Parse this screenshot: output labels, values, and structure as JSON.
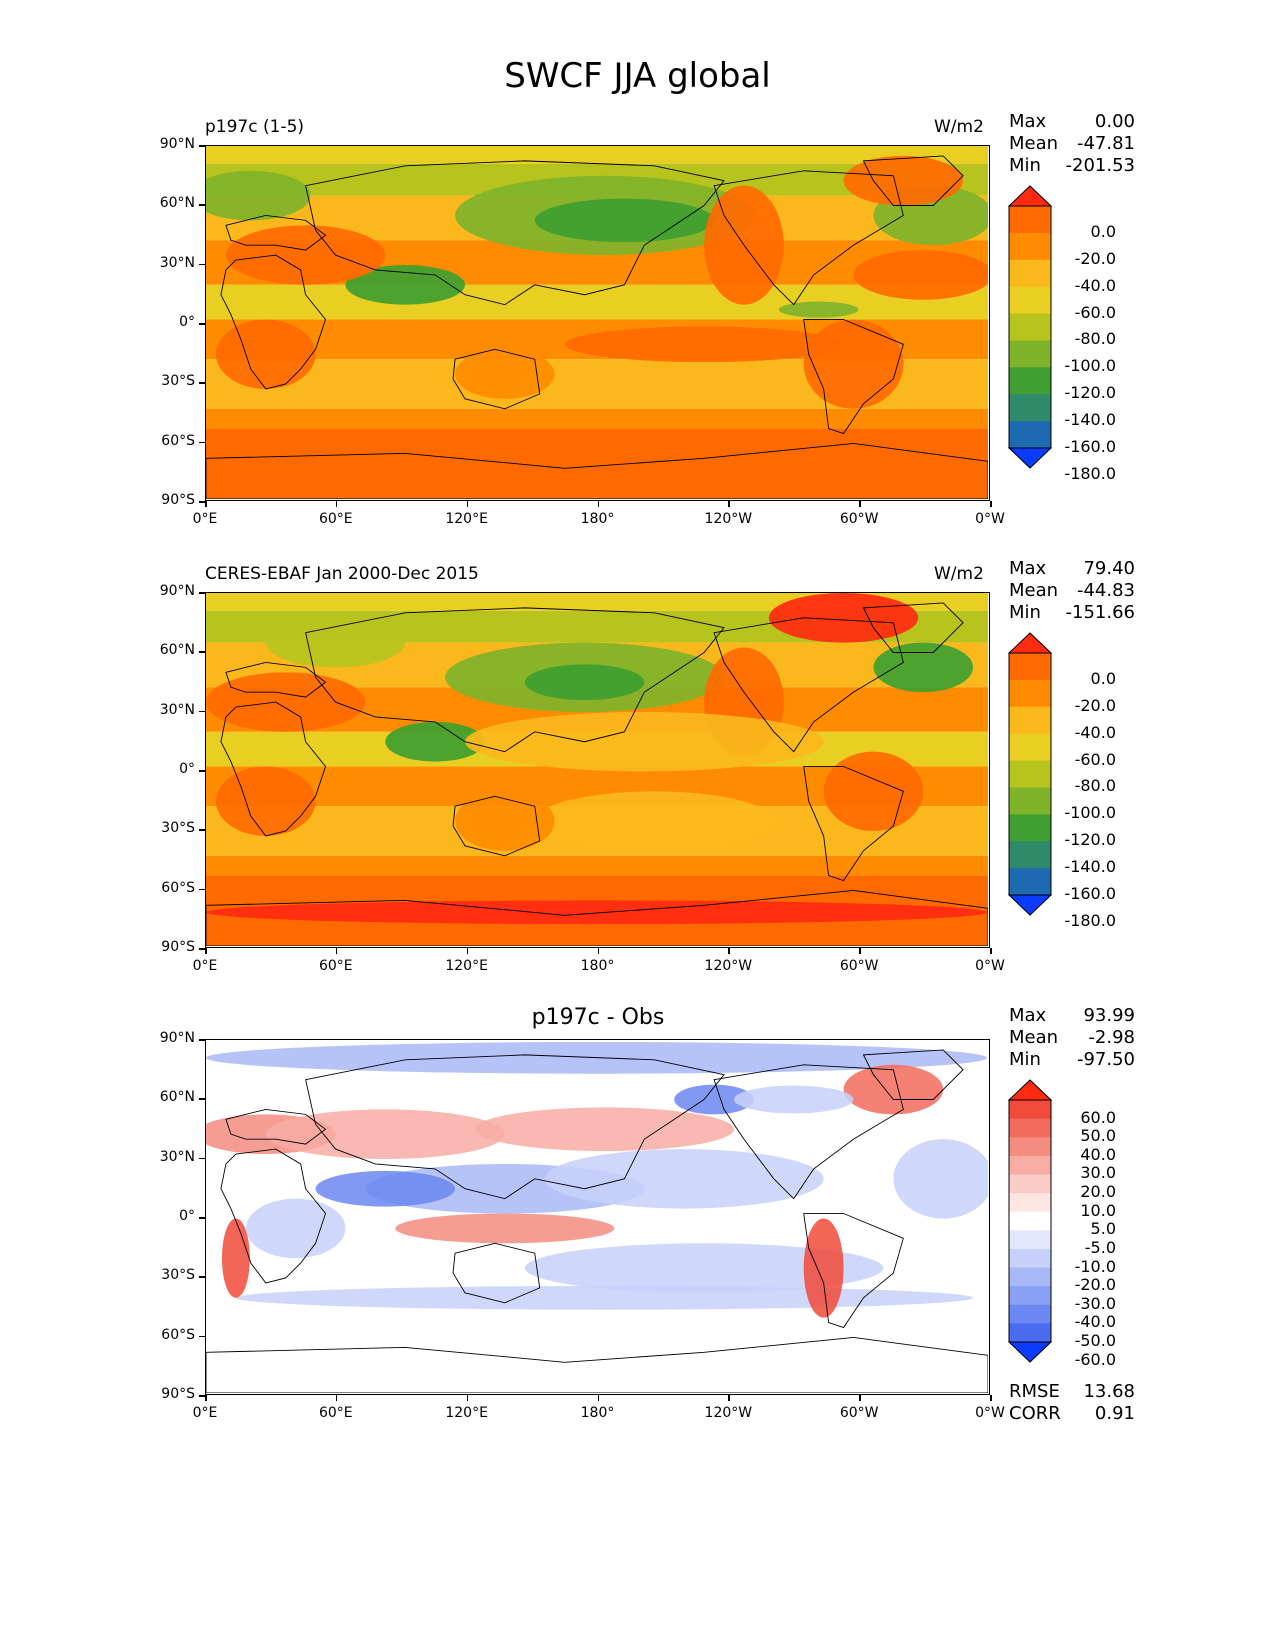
{
  "figure_title": "SWCF JJA global",
  "panels": [
    {
      "left_title": "p197c (1-5)",
      "right_title": "W/m2",
      "center_title": "",
      "stats": [
        {
          "k": "Max",
          "v": "0.00"
        },
        {
          "k": "Mean",
          "v": "-47.81"
        },
        {
          "k": "Min",
          "v": "-201.53"
        }
      ],
      "colorbar_labels": [
        "0.0",
        "-20.0",
        "-40.0",
        "-60.0",
        "-80.0",
        "-100.0",
        "-120.0",
        "-140.0",
        "-160.0",
        "-180.0"
      ],
      "colorbar_colors": [
        "#ff2a10",
        "#ff6a00",
        "#ff8c00",
        "#fbb81c",
        "#e8cf22",
        "#b8c41e",
        "#7fb32a",
        "#3f9f30",
        "#2f8a6a",
        "#1e6ab0",
        "#0a3cff"
      ]
    },
    {
      "left_title": "CERES-EBAF Jan 2000-Dec 2015",
      "right_title": "W/m2",
      "center_title": "",
      "stats": [
        {
          "k": "Max",
          "v": "79.40"
        },
        {
          "k": "Mean",
          "v": "-44.83"
        },
        {
          "k": "Min",
          "v": "-151.66"
        }
      ],
      "colorbar_labels": [
        "0.0",
        "-20.0",
        "-40.0",
        "-60.0",
        "-80.0",
        "-100.0",
        "-120.0",
        "-140.0",
        "-160.0",
        "-180.0"
      ],
      "colorbar_colors": [
        "#ff2a10",
        "#ff6a00",
        "#ff8c00",
        "#fbb81c",
        "#e8cf22",
        "#b8c41e",
        "#7fb32a",
        "#3f9f30",
        "#2f8a6a",
        "#1e6ab0",
        "#0a3cff"
      ]
    },
    {
      "left_title": "",
      "right_title": "",
      "center_title": "p197c - Obs",
      "stats": [
        {
          "k": "Max",
          "v": "93.99"
        },
        {
          "k": "Mean",
          "v": "-2.98"
        },
        {
          "k": "Min",
          "v": "-97.50"
        }
      ],
      "colorbar_labels": [
        "60.0",
        "50.0",
        "40.0",
        "30.0",
        "20.0",
        "10.0",
        "5.0",
        "-5.0",
        "-10.0",
        "-20.0",
        "-30.0",
        "-40.0",
        "-50.0",
        "-60.0"
      ],
      "colorbar_colors": [
        "#ff2a10",
        "#f04a3a",
        "#f26b5c",
        "#f58c80",
        "#f8ada4",
        "#fbcbc5",
        "#fde5e2",
        "#ffffff",
        "#e3e8fc",
        "#c7d1fa",
        "#a8b8f7",
        "#8aa0f4",
        "#6b87f1",
        "#4a6cef",
        "#0a3cff"
      ],
      "extra": [
        {
          "k": "RMSE",
          "v": "13.68"
        },
        {
          "k": "CORR",
          "v": "0.91"
        }
      ]
    }
  ],
  "lat_ticks": [
    "90°N",
    "60°N",
    "30°N",
    "0°",
    "30°S",
    "60°S",
    "90°S"
  ],
  "lon_ticks": [
    "0°E",
    "60°E",
    "120°E",
    "180°",
    "120°W",
    "60°W",
    "0°W"
  ]
}
